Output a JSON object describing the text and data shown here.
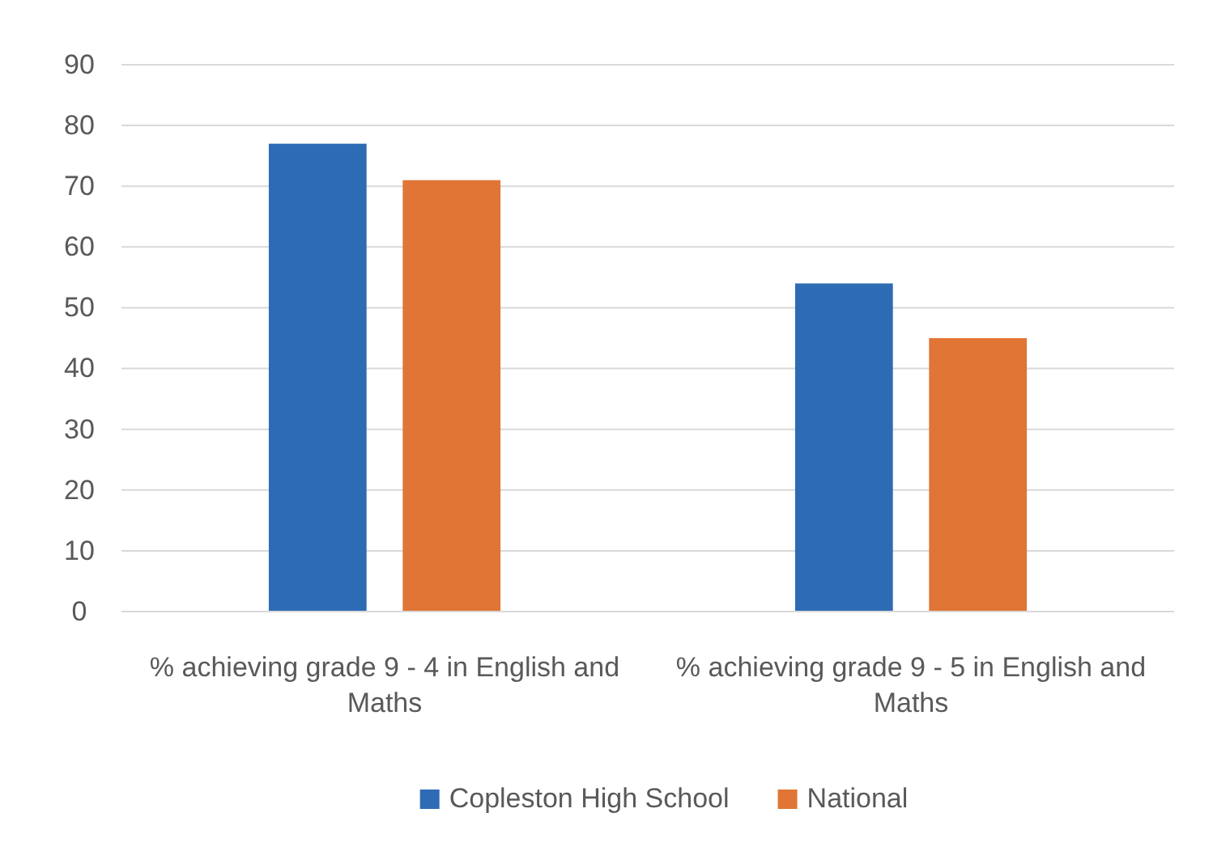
{
  "chart_data": {
    "type": "bar",
    "categories": [
      "% achieving grade 9 - 4 in English and Maths",
      "% achieving grade 9 - 5 in English and Maths"
    ],
    "series": [
      {
        "name": "Copleston High School",
        "color": "#2e6bb5",
        "values": [
          77,
          54
        ]
      },
      {
        "name": "National",
        "color": "#e07535",
        "values": [
          71,
          45
        ]
      }
    ],
    "ylim": [
      0,
      90
    ],
    "yticks": [
      0,
      10,
      20,
      30,
      40,
      50,
      60,
      70,
      80,
      90
    ],
    "grid": "y",
    "legend": "bottom"
  }
}
